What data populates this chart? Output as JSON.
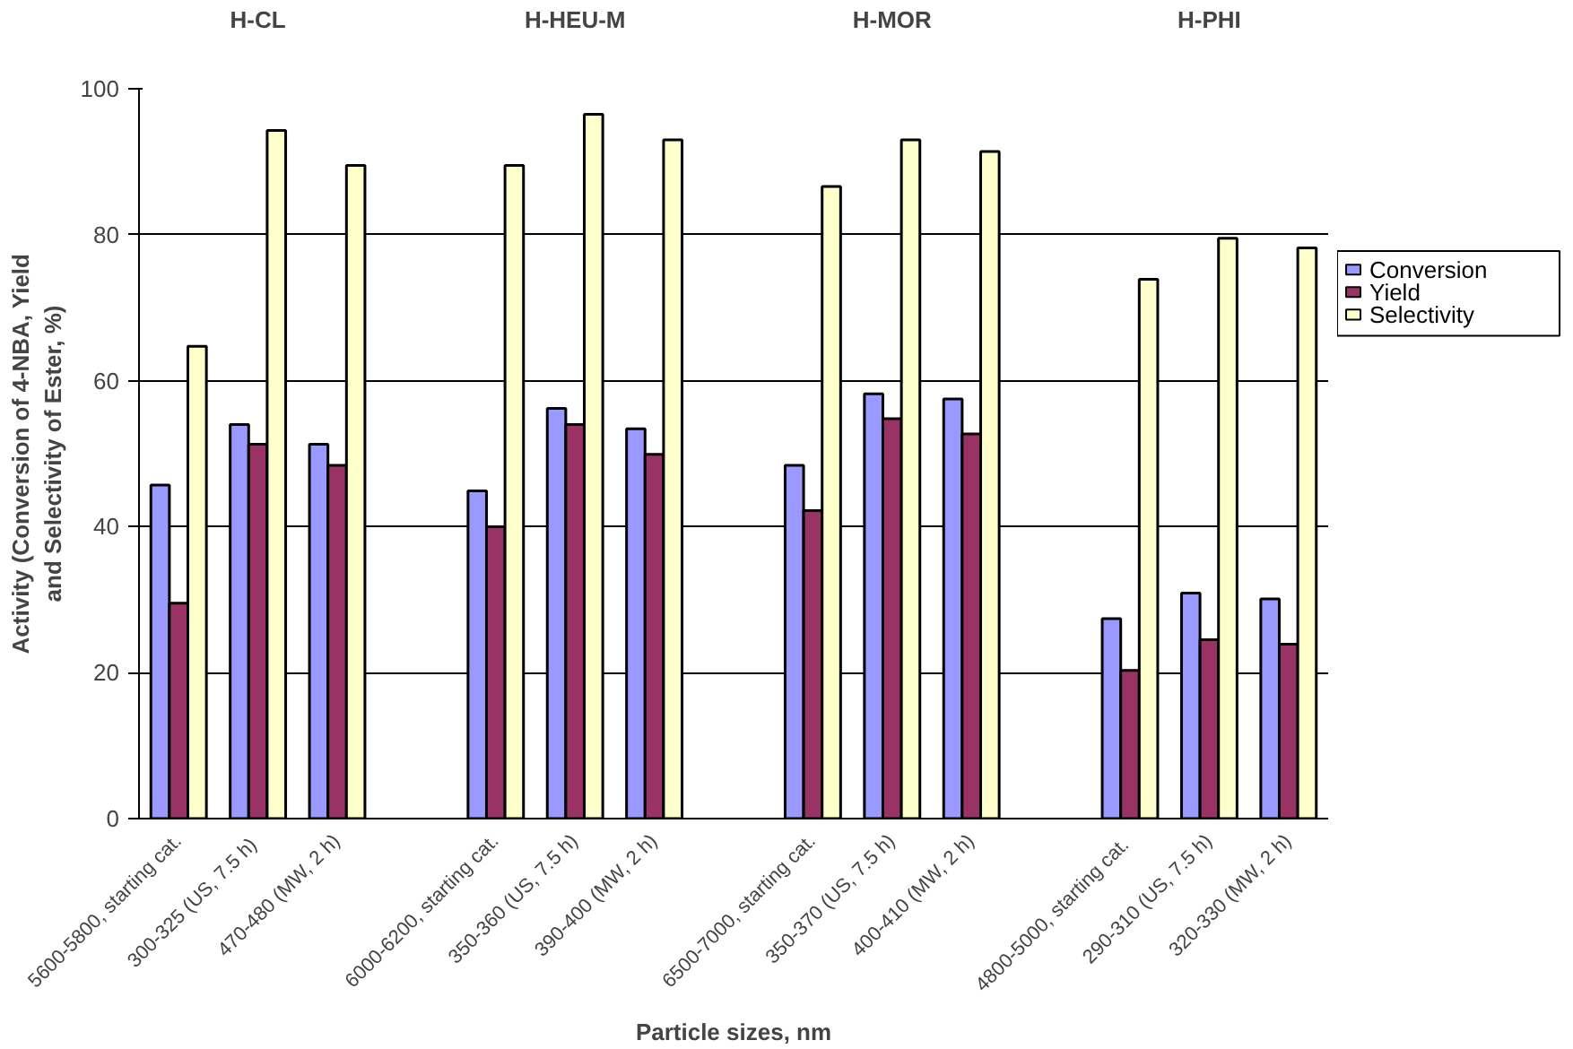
{
  "chart_data": {
    "type": "bar",
    "xlabel": "Particle sizes, nm",
    "ylabel": "Activity (Conversion of 4-NBA, Yield and Selectivity of Ester, %)",
    "categories": [
      "5600-5800, starting cat.",
      "300-325  (US, 7.5 h)",
      "470-480 (MW, 2 h)",
      null,
      "6000-6200, starting cat.",
      "350-360 (US, 7.5 h)",
      "390-400 (MW, 2 h)",
      null,
      "6500-7000, starting cat.",
      "350-370 (US, 7.5 h)",
      "400-410 (MW, 2 h)",
      null,
      "4800-5000,  starting cat.",
      "290-310 (US, 7.5 h)",
      "320-330 (MW, 2 h)"
    ],
    "series": [
      {
        "name": "Conversion",
        "color": "#9999ff",
        "values": [
          45.7,
          54,
          51.3,
          null,
          44.9,
          56.2,
          53.4,
          null,
          48.4,
          58.2,
          57.5,
          null,
          27.4,
          30.9,
          30.1
        ]
      },
      {
        "name": "Yield",
        "color": "#993366",
        "values": [
          29.5,
          51.3,
          48.4,
          null,
          40,
          54,
          49.9,
          null,
          42.2,
          54.8,
          52.7,
          null,
          20.3,
          24.5,
          23.9
        ]
      },
      {
        "name": "Selectivity",
        "color": "#ffffcc",
        "values": [
          64.7,
          94.3,
          89.5,
          null,
          89.5,
          96.5,
          93,
          null,
          86.6,
          93,
          91.4,
          null,
          73.9,
          79.5,
          78.2
        ]
      }
    ],
    "annotations": [
      "H-CL",
      "H-HEU-M",
      "H-MOR",
      "H-PHI"
    ],
    "ylim": [
      0,
      100
    ],
    "yticks": [
      0,
      20,
      40,
      60,
      80,
      100
    ],
    "grid": "y",
    "legend": "right"
  }
}
